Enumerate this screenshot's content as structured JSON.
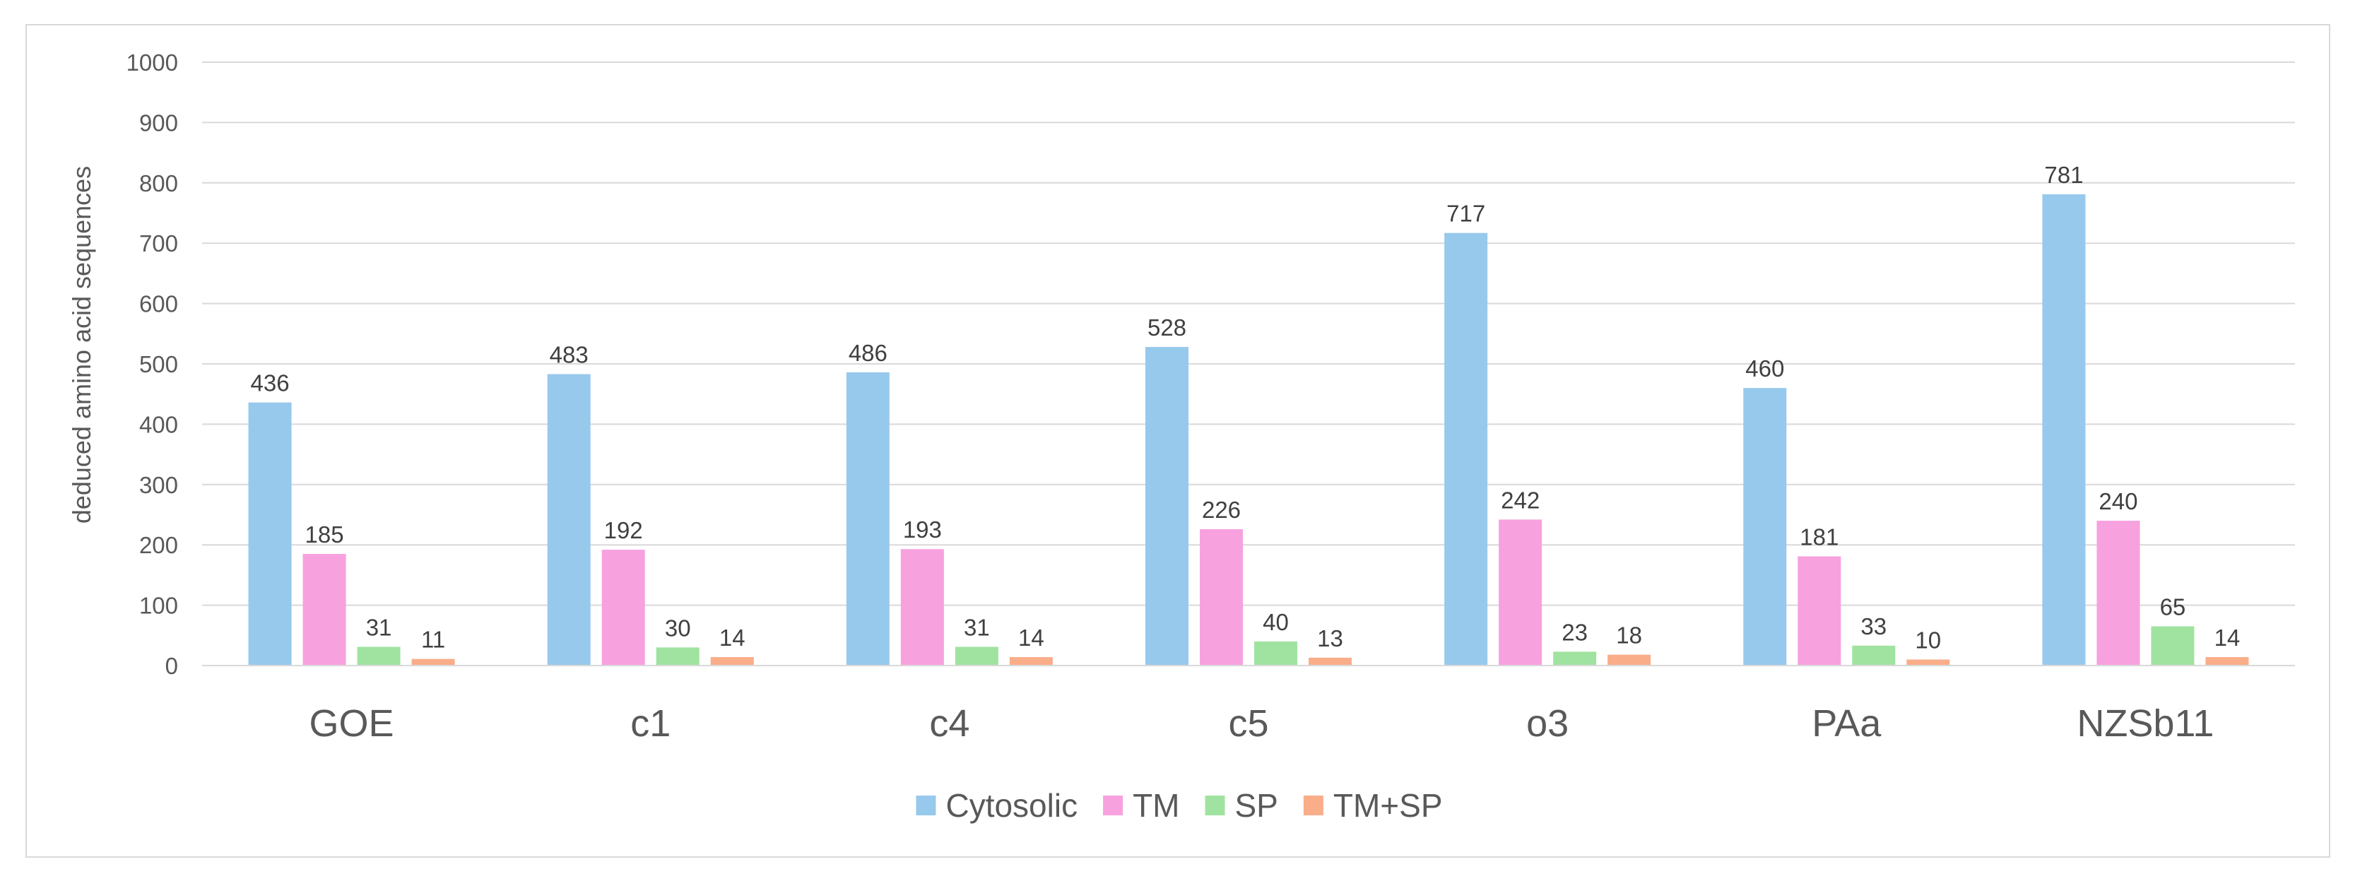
{
  "chart_data": {
    "type": "bar",
    "title": "",
    "xlabel": "",
    "ylabel": "deduced amino acid sequences",
    "ylim": [
      0,
      1000
    ],
    "yticks": [
      0,
      100,
      200,
      300,
      400,
      500,
      600,
      700,
      800,
      900,
      1000
    ],
    "grid": true,
    "legend_position": "bottom",
    "categories": [
      "GOE",
      "c1",
      "c4",
      "c5",
      "o3",
      "PAa",
      "NZSb11"
    ],
    "series": [
      {
        "name": "Cytosolic",
        "color": "#97c9ec",
        "values": [
          436,
          483,
          486,
          528,
          717,
          460,
          781
        ]
      },
      {
        "name": "TM",
        "color": "#f7a1df",
        "values": [
          185,
          192,
          193,
          226,
          242,
          181,
          240
        ]
      },
      {
        "name": "SP",
        "color": "#a0e3a0",
        "values": [
          31,
          30,
          31,
          40,
          23,
          33,
          65
        ]
      },
      {
        "name": "TM+SP",
        "color": "#f9ad89",
        "values": [
          11,
          14,
          14,
          13,
          18,
          10,
          14
        ]
      }
    ]
  }
}
